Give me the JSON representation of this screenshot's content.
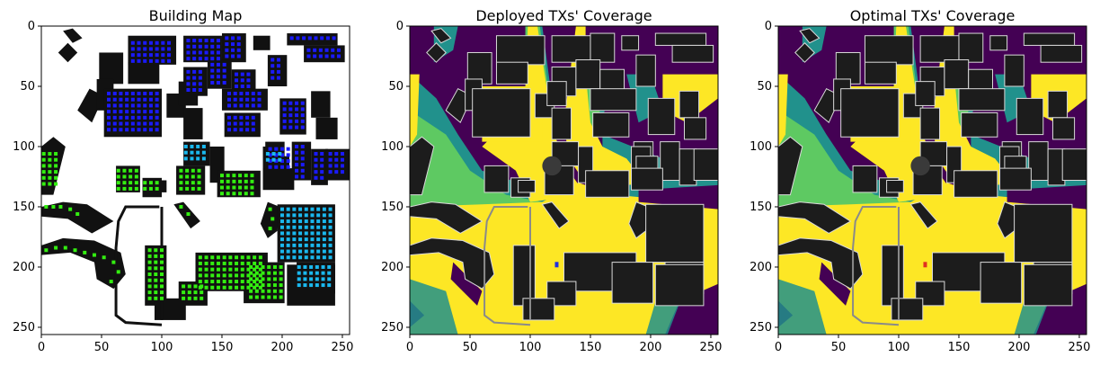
{
  "figure": {
    "panels": [
      {
        "title": "Building Map"
      },
      {
        "title": "Deployed TXs' Coverage"
      },
      {
        "title": "Optimal TXs' Coverage"
      }
    ]
  },
  "colors": {
    "building": "#111111",
    "background_map": "#ffffff",
    "cov_none": "#440154",
    "cov_low": "#21918c",
    "cov_mid": "#5ec962",
    "cov_high": "#fde725",
    "building_gray": "#1c1c1c",
    "outline": "#d9d9d9",
    "dot_blue": "#1a1aff",
    "dot_green": "#33ee11",
    "dot_cyan": "#1ab8ee",
    "tx_blue": "#2030e0",
    "tx_red": "#e03020"
  },
  "chart_data": [
    {
      "type": "heatmap",
      "title": "Building Map",
      "xlim": [
        0,
        256
      ],
      "ylim": [
        256,
        0
      ],
      "xticks": [
        0,
        50,
        100,
        150,
        200,
        250
      ],
      "yticks": [
        0,
        50,
        100,
        150,
        200,
        250
      ],
      "xlabel": "",
      "ylabel": "",
      "grid": false
    },
    {
      "type": "heatmap",
      "title": "Deployed TXs' Coverage",
      "xlim": [
        0,
        256
      ],
      "ylim": [
        256,
        0
      ],
      "xticks": [
        0,
        50,
        100,
        150,
        200,
        250
      ],
      "yticks": [
        0,
        50,
        100,
        150,
        200,
        250
      ],
      "xlabel": "",
      "ylabel": "",
      "grid": false,
      "tx_marker": {
        "x": 122,
        "y": 198,
        "color": "tx_blue"
      }
    },
    {
      "type": "heatmap",
      "title": "Optimal TXs' Coverage",
      "xlim": [
        0,
        256
      ],
      "ylim": [
        256,
        0
      ],
      "xticks": [
        0,
        50,
        100,
        150,
        200,
        250
      ],
      "yticks": [
        0,
        50,
        100,
        150,
        200,
        250
      ],
      "xlabel": "",
      "ylabel": "",
      "grid": false,
      "tx_marker": {
        "x": 122,
        "y": 198,
        "color": "tx_red"
      }
    }
  ]
}
